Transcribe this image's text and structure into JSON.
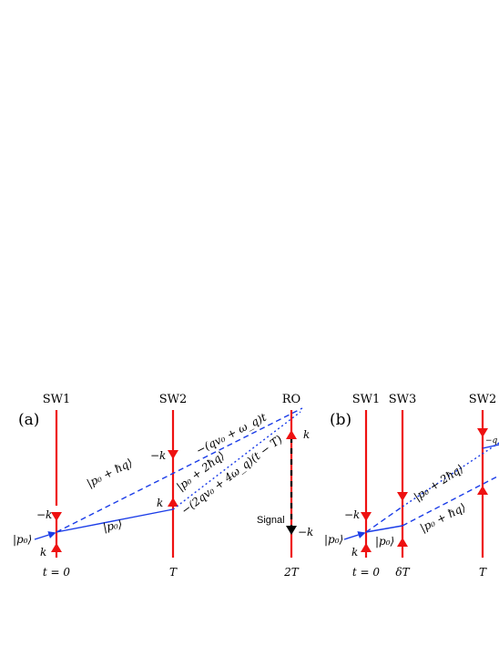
{
  "colors": {
    "beam": "#ee1111",
    "path": "#1a3ce8",
    "signal": "#000000"
  },
  "panel_a": {
    "tag": "(a)",
    "beams": {
      "sw1": "SW1",
      "sw2": "SW2",
      "ro": "RO"
    },
    "times": {
      "t0": "t = 0",
      "t1": "T",
      "t2": "2T"
    },
    "k_labels": {
      "sw1_up": "k",
      "sw1_down": "−k",
      "sw2_up": "k",
      "sw2_down": "−k",
      "ro_up": "k",
      "ro_down": "−k"
    },
    "states": {
      "p0_in": "|p₀⟩",
      "p0_low": "|p₀⟩",
      "p0_hq": "|p₀ + ħq⟩",
      "p0_2hq": "|p₀ + 2ħq⟩"
    },
    "phases": {
      "phase1": "−(qv₀ + ω_q)t",
      "phase2": "−(2qv₀ + 4ω_q)(t − T)"
    },
    "signal": "Signal"
  },
  "panel_b": {
    "tag": "(b)",
    "beams": {
      "sw1": "SW1",
      "sw3": "SW3",
      "sw2": "SW2"
    },
    "times": {
      "t0": "t = 0",
      "t1": "δT",
      "t2": "T"
    },
    "k_labels": {
      "sw1_up": "k",
      "sw1_down": "−k"
    },
    "states": {
      "p0_in": "|p₀⟩",
      "p0_low": "|p₀⟩",
      "p0_2hq": "|p₀ + 2ħq⟩",
      "p0_hq": "|p₀ + ħq⟩"
    },
    "phases": {
      "phase_partial": "−q"
    }
  }
}
